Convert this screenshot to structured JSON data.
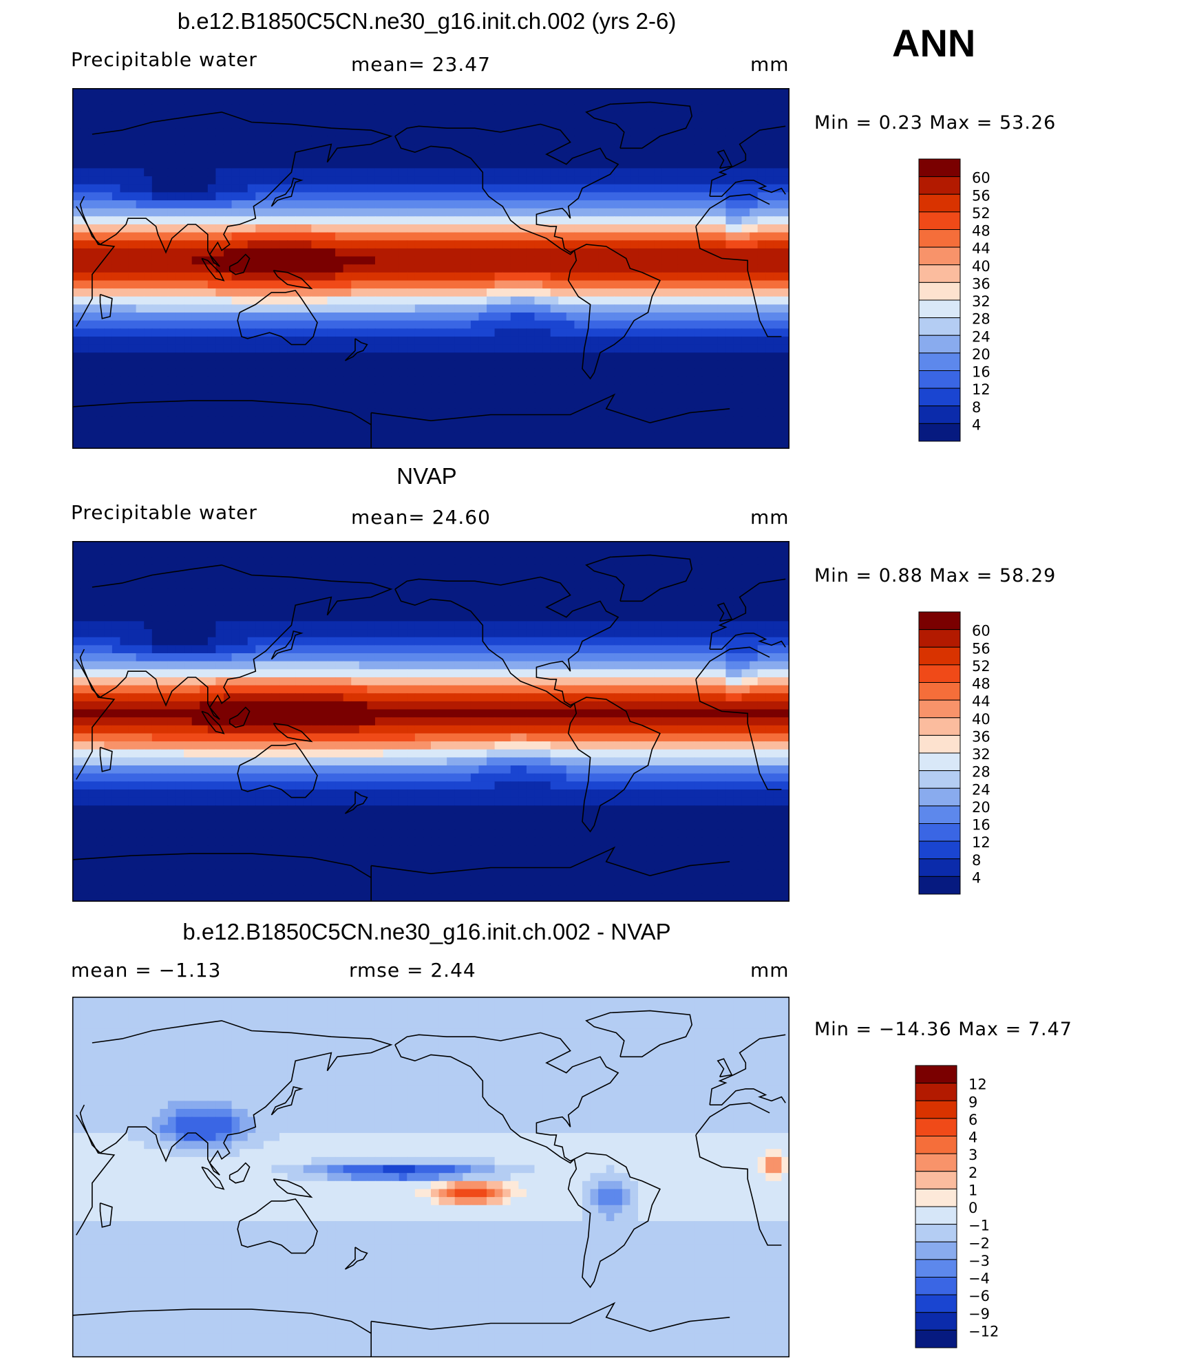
{
  "figure": {
    "season": "ANN"
  },
  "panels": [
    {
      "title": "b.e12.B1850C5CN.ne30_g16.init.ch.002 (yrs 2-6)",
      "left_label": "Precipitable water",
      "center_label": "mean=   23.47",
      "right_label": "mm",
      "minmax": "Min =    0.23  Max =   53.26"
    },
    {
      "title": "NVAP",
      "left_label": "Precipitable water",
      "center_label": "mean=   24.60",
      "right_label": "mm",
      "minmax": "Min =    0.88  Max =   58.29"
    },
    {
      "title": "b.e12.B1850C5CN.ne30_g16.init.ch.002 - NVAP",
      "left_label": "mean =   −1.13",
      "center_label": "rmse =    2.44",
      "right_label": "mm",
      "minmax": "Min = −14.36  Max =    7.47"
    }
  ],
  "chart_data": [
    {
      "type": "heatmap",
      "title": "b.e12.B1850C5CN.ne30_g16.init.ch.002 (yrs 2-6)",
      "variable": "Precipitable water",
      "units": "mm",
      "mean": 23.47,
      "min": 0.23,
      "max": 53.26,
      "field_mode": "model",
      "colorbar": {
        "levels": [
          "60",
          "56",
          "52",
          "48",
          "44",
          "40",
          "36",
          "32",
          "28",
          "24",
          "20",
          "16",
          "12",
          "8",
          "4"
        ],
        "colors": [
          "#7a0000",
          "#b31a00",
          "#d93300",
          "#f04a18",
          "#f56e3a",
          "#f8936a",
          "#fbbc9e",
          "#fde2cf",
          "#d9e8f8",
          "#b4cdf3",
          "#89abee",
          "#5d88ec",
          "#3a66e4",
          "#1a45d1",
          "#0b2bab",
          "#061a80"
        ]
      }
    },
    {
      "type": "heatmap",
      "title": "NVAP",
      "variable": "Precipitable water",
      "units": "mm",
      "mean": 24.6,
      "min": 0.88,
      "max": 58.29,
      "field_mode": "obs",
      "colorbar": {
        "levels": [
          "60",
          "56",
          "52",
          "48",
          "44",
          "40",
          "36",
          "32",
          "28",
          "24",
          "20",
          "16",
          "12",
          "8",
          "4"
        ],
        "colors": [
          "#7a0000",
          "#b31a00",
          "#d93300",
          "#f04a18",
          "#f56e3a",
          "#f8936a",
          "#fbbc9e",
          "#fde2cf",
          "#d9e8f8",
          "#b4cdf3",
          "#89abee",
          "#5d88ec",
          "#3a66e4",
          "#1a45d1",
          "#0b2bab",
          "#061a80"
        ]
      }
    },
    {
      "type": "heatmap",
      "title": "b.e12.B1850C5CN.ne30_g16.init.ch.002 - NVAP",
      "units": "mm",
      "mean": -1.13,
      "rmse": 2.44,
      "min": -14.36,
      "max": 7.47,
      "field_mode": "diff",
      "colorbar": {
        "levels": [
          "12",
          "9",
          "6",
          "4",
          "3",
          "2",
          "1",
          "0",
          "−1",
          "−2",
          "−3",
          "−4",
          "−6",
          "−9",
          "−12"
        ],
        "colors": [
          "#7a0000",
          "#b31a00",
          "#d93300",
          "#f04a18",
          "#f56e3a",
          "#f8936a",
          "#fbbc9e",
          "#fde9d9",
          "#d6e6f8",
          "#b4cdf3",
          "#89abee",
          "#5d88ec",
          "#3a66e4",
          "#1a45d1",
          "#0b2bab",
          "#061a80"
        ]
      }
    }
  ]
}
